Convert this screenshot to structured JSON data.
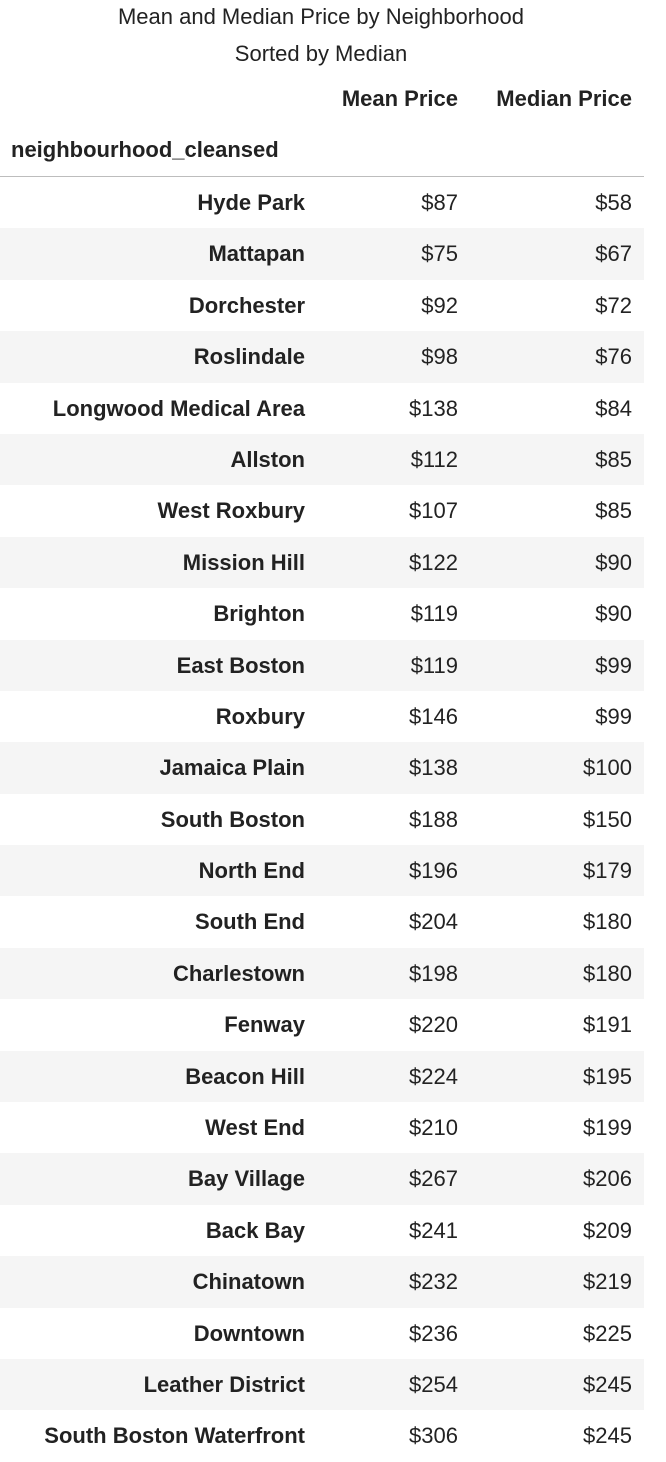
{
  "caption": {
    "title": "Mean and Median Price by Neighborhood",
    "subtitle": "Sorted by Median"
  },
  "table": {
    "columns": [
      "Mean Price",
      "Median Price"
    ],
    "index_name": "neighbourhood_cleansed",
    "rows": [
      {
        "name": "Hyde Park",
        "mean": "$87",
        "median": "$58"
      },
      {
        "name": "Mattapan",
        "mean": "$75",
        "median": "$67"
      },
      {
        "name": "Dorchester",
        "mean": "$92",
        "median": "$72"
      },
      {
        "name": "Roslindale",
        "mean": "$98",
        "median": "$76"
      },
      {
        "name": "Longwood Medical Area",
        "mean": "$138",
        "median": "$84"
      },
      {
        "name": "Allston",
        "mean": "$112",
        "median": "$85"
      },
      {
        "name": "West Roxbury",
        "mean": "$107",
        "median": "$85"
      },
      {
        "name": "Mission Hill",
        "mean": "$122",
        "median": "$90"
      },
      {
        "name": "Brighton",
        "mean": "$119",
        "median": "$90"
      },
      {
        "name": "East Boston",
        "mean": "$119",
        "median": "$99"
      },
      {
        "name": "Roxbury",
        "mean": "$146",
        "median": "$99"
      },
      {
        "name": "Jamaica Plain",
        "mean": "$138",
        "median": "$100"
      },
      {
        "name": "South Boston",
        "mean": "$188",
        "median": "$150"
      },
      {
        "name": "North End",
        "mean": "$196",
        "median": "$179"
      },
      {
        "name": "South End",
        "mean": "$204",
        "median": "$180"
      },
      {
        "name": "Charlestown",
        "mean": "$198",
        "median": "$180"
      },
      {
        "name": "Fenway",
        "mean": "$220",
        "median": "$191"
      },
      {
        "name": "Beacon Hill",
        "mean": "$224",
        "median": "$195"
      },
      {
        "name": "West End",
        "mean": "$210",
        "median": "$199"
      },
      {
        "name": "Bay Village",
        "mean": "$267",
        "median": "$206"
      },
      {
        "name": "Back Bay",
        "mean": "$241",
        "median": "$209"
      },
      {
        "name": "Chinatown",
        "mean": "$232",
        "median": "$219"
      },
      {
        "name": "Downtown",
        "mean": "$236",
        "median": "$225"
      },
      {
        "name": "Leather District",
        "mean": "$254",
        "median": "$245"
      },
      {
        "name": "South Boston Waterfront",
        "mean": "$306",
        "median": "$245"
      }
    ]
  },
  "colors": {
    "stripe": "#f5f5f5",
    "rule": "#bdbdbd",
    "text": "#222222"
  }
}
